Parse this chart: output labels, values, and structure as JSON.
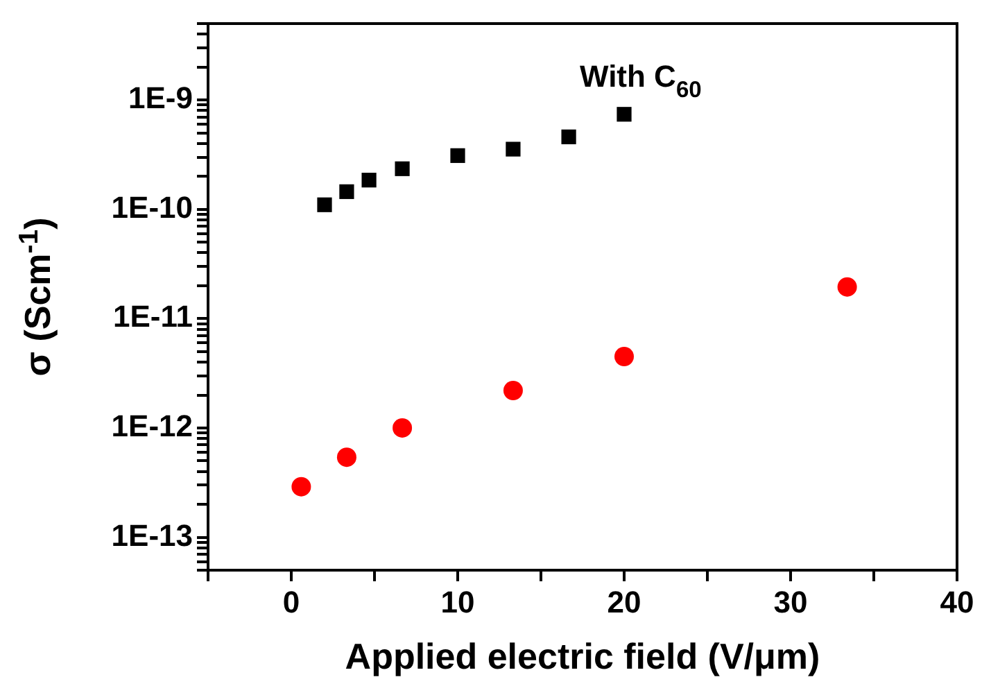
{
  "chart_data": {
    "type": "scatter",
    "xlabel": "Applied electric field (V/μm)",
    "ylabel": "σ (Scm$^{-1}$)",
    "log": "y",
    "grid": false,
    "legend": false,
    "xlim": [
      -5,
      40
    ],
    "xticks": [
      {
        "value": -5,
        "label": null
      },
      0,
      {
        "value": 5,
        "label": null
      },
      10,
      {
        "value": 15,
        "label": null
      },
      20,
      {
        "value": 25,
        "label": null
      },
      30,
      {
        "value": 35,
        "label": null
      },
      40
    ],
    "ylim": [
      5e-14,
      5e-09
    ],
    "yticks": [
      {
        "value": 5e-14,
        "label": null
      },
      {
        "value": 6e-14,
        "label": null
      },
      {
        "value": 7e-14,
        "label": null
      },
      {
        "value": 8e-14,
        "label": null
      },
      {
        "value": 9e-14,
        "label": null
      },
      {
        "value": 1e-13,
        "label": "1E-13"
      },
      {
        "value": 2e-13,
        "label": null
      },
      {
        "value": 3e-13,
        "label": null
      },
      {
        "value": 4e-13,
        "label": null
      },
      {
        "value": 5e-13,
        "label": null
      },
      {
        "value": 6e-13,
        "label": null
      },
      {
        "value": 7e-13,
        "label": null
      },
      {
        "value": 8e-13,
        "label": null
      },
      {
        "value": 9e-13,
        "label": null
      },
      {
        "value": 1e-12,
        "label": "1E-12"
      },
      {
        "value": 2e-12,
        "label": null
      },
      {
        "value": 3e-12,
        "label": null
      },
      {
        "value": 4e-12,
        "label": null
      },
      {
        "value": 5e-12,
        "label": null
      },
      {
        "value": 6e-12,
        "label": null
      },
      {
        "value": 7e-12,
        "label": null
      },
      {
        "value": 8e-12,
        "label": null
      },
      {
        "value": 9e-12,
        "label": null
      },
      {
        "value": 1e-11,
        "label": "1E-11"
      },
      {
        "value": 2e-11,
        "label": null
      },
      {
        "value": 3e-11,
        "label": null
      },
      {
        "value": 4e-11,
        "label": null
      },
      {
        "value": 5e-11,
        "label": null
      },
      {
        "value": 6e-11,
        "label": null
      },
      {
        "value": 7e-11,
        "label": null
      },
      {
        "value": 8e-11,
        "label": null
      },
      {
        "value": 9e-11,
        "label": null
      },
      {
        "value": 1e-10,
        "label": "1E-10"
      },
      {
        "value": 2e-10,
        "label": null
      },
      {
        "value": 3e-10,
        "label": null
      },
      {
        "value": 4e-10,
        "label": null
      },
      {
        "value": 5e-10,
        "label": null
      },
      {
        "value": 6e-10,
        "label": null
      },
      {
        "value": 7e-10,
        "label": null
      },
      {
        "value": 8e-10,
        "label": null
      },
      {
        "value": 9e-10,
        "label": null
      },
      {
        "value": 1e-09,
        "label": "1E-9"
      },
      {
        "value": 2e-09,
        "label": null
      },
      {
        "value": 3e-09,
        "label": null
      },
      {
        "value": 4e-09,
        "label": null
      },
      {
        "value": 5e-09,
        "label": null
      }
    ],
    "series": [
      {
        "name": "With C$_{60}$",
        "color": "#000000",
        "marker": "square",
        "x": [
          2,
          3.33,
          4.67,
          6.67,
          10,
          13.33,
          16.67,
          20
        ],
        "values": [
          1.1e-10,
          1.45e-10,
          1.85e-10,
          2.35e-10,
          3.1e-10,
          3.55e-10,
          4.6e-10,
          7.4e-10
        ]
      },
      {
        "color": "#ff0000",
        "marker": "circle",
        "x": [
          0.6,
          3.33,
          6.67,
          13.33,
          20,
          33.4
        ],
        "values": [
          2.9e-13,
          5.4e-13,
          1e-12,
          2.2e-12,
          4.5e-12,
          1.95e-11
        ]
      }
    ]
  }
}
